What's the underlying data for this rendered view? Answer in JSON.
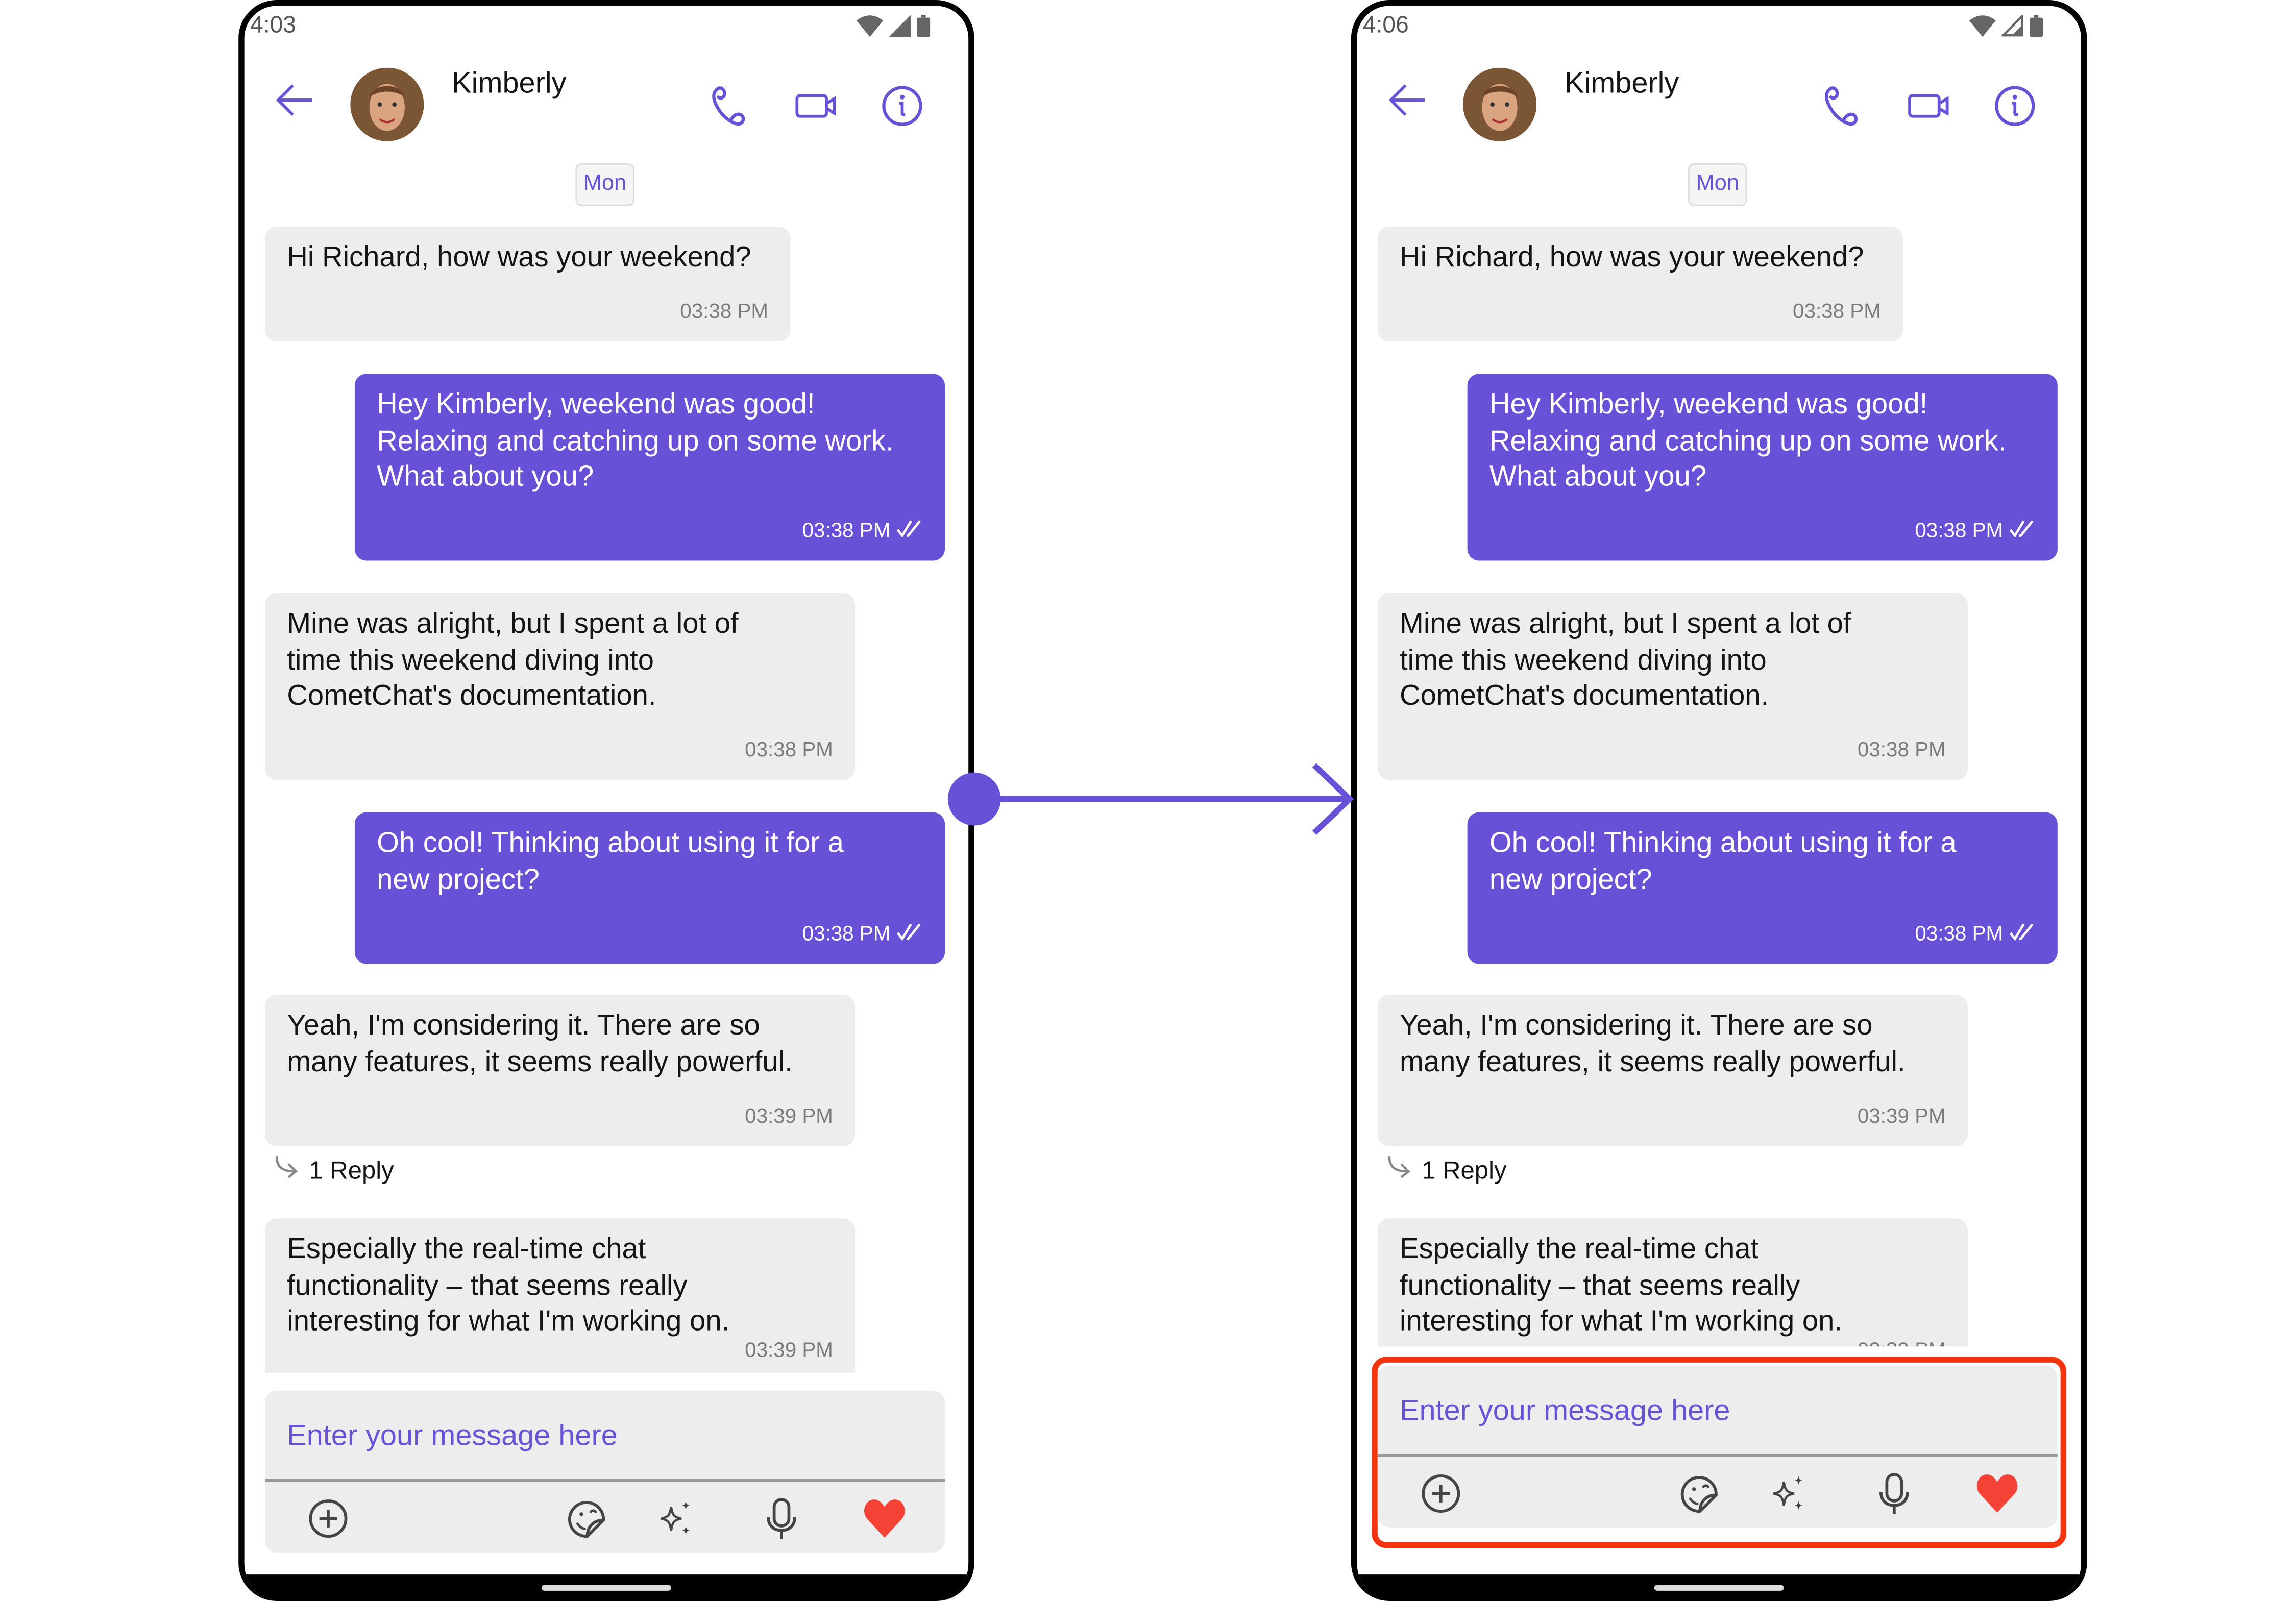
{
  "phones": [
    {
      "status_time": "4:03"
    },
    {
      "status_time": "4:06"
    }
  ],
  "header": {
    "contact_name": "Kimberly"
  },
  "date_separator": "Mon",
  "messages": [
    {
      "direction": "incoming",
      "lines": [
        "Hi Richard, how was your weekend?"
      ],
      "time": "03:38 PM"
    },
    {
      "direction": "outgoing",
      "lines": [
        "Hey Kimberly, weekend was good!",
        "Relaxing and catching up on some work.",
        "What about you?"
      ],
      "time": "03:38 PM",
      "receipt": "read-double-check"
    },
    {
      "direction": "incoming",
      "lines": [
        "Mine was alright, but I spent a lot of",
        "time this weekend diving into",
        "CometChat's documentation."
      ],
      "time": "03:38 PM"
    },
    {
      "direction": "outgoing",
      "lines": [
        "Oh cool! Thinking about using it for a",
        "new project?"
      ],
      "time": "03:38 PM",
      "receipt": "read-double-check"
    },
    {
      "direction": "incoming",
      "lines": [
        "Yeah, I'm considering it.  There are so",
        "many features, it seems really powerful."
      ],
      "time": "03:39 PM",
      "thread_replies": "1 Reply"
    },
    {
      "direction": "incoming",
      "lines": [
        "Especially the real-time chat",
        "functionality – that seems really",
        "interesting for what I'm working on."
      ],
      "time": "03:39 PM"
    }
  ],
  "composer": {
    "placeholder": "Enter your message here",
    "icons": [
      "add-circle-icon",
      "sticker-icon",
      "ai-sparkle-icon",
      "microphone-icon",
      "heart-icon"
    ]
  },
  "colors": {
    "accent": "#6851d6",
    "incoming_bubble": "#ededed",
    "highlight": "#f4340f",
    "heart": "#f44336"
  }
}
